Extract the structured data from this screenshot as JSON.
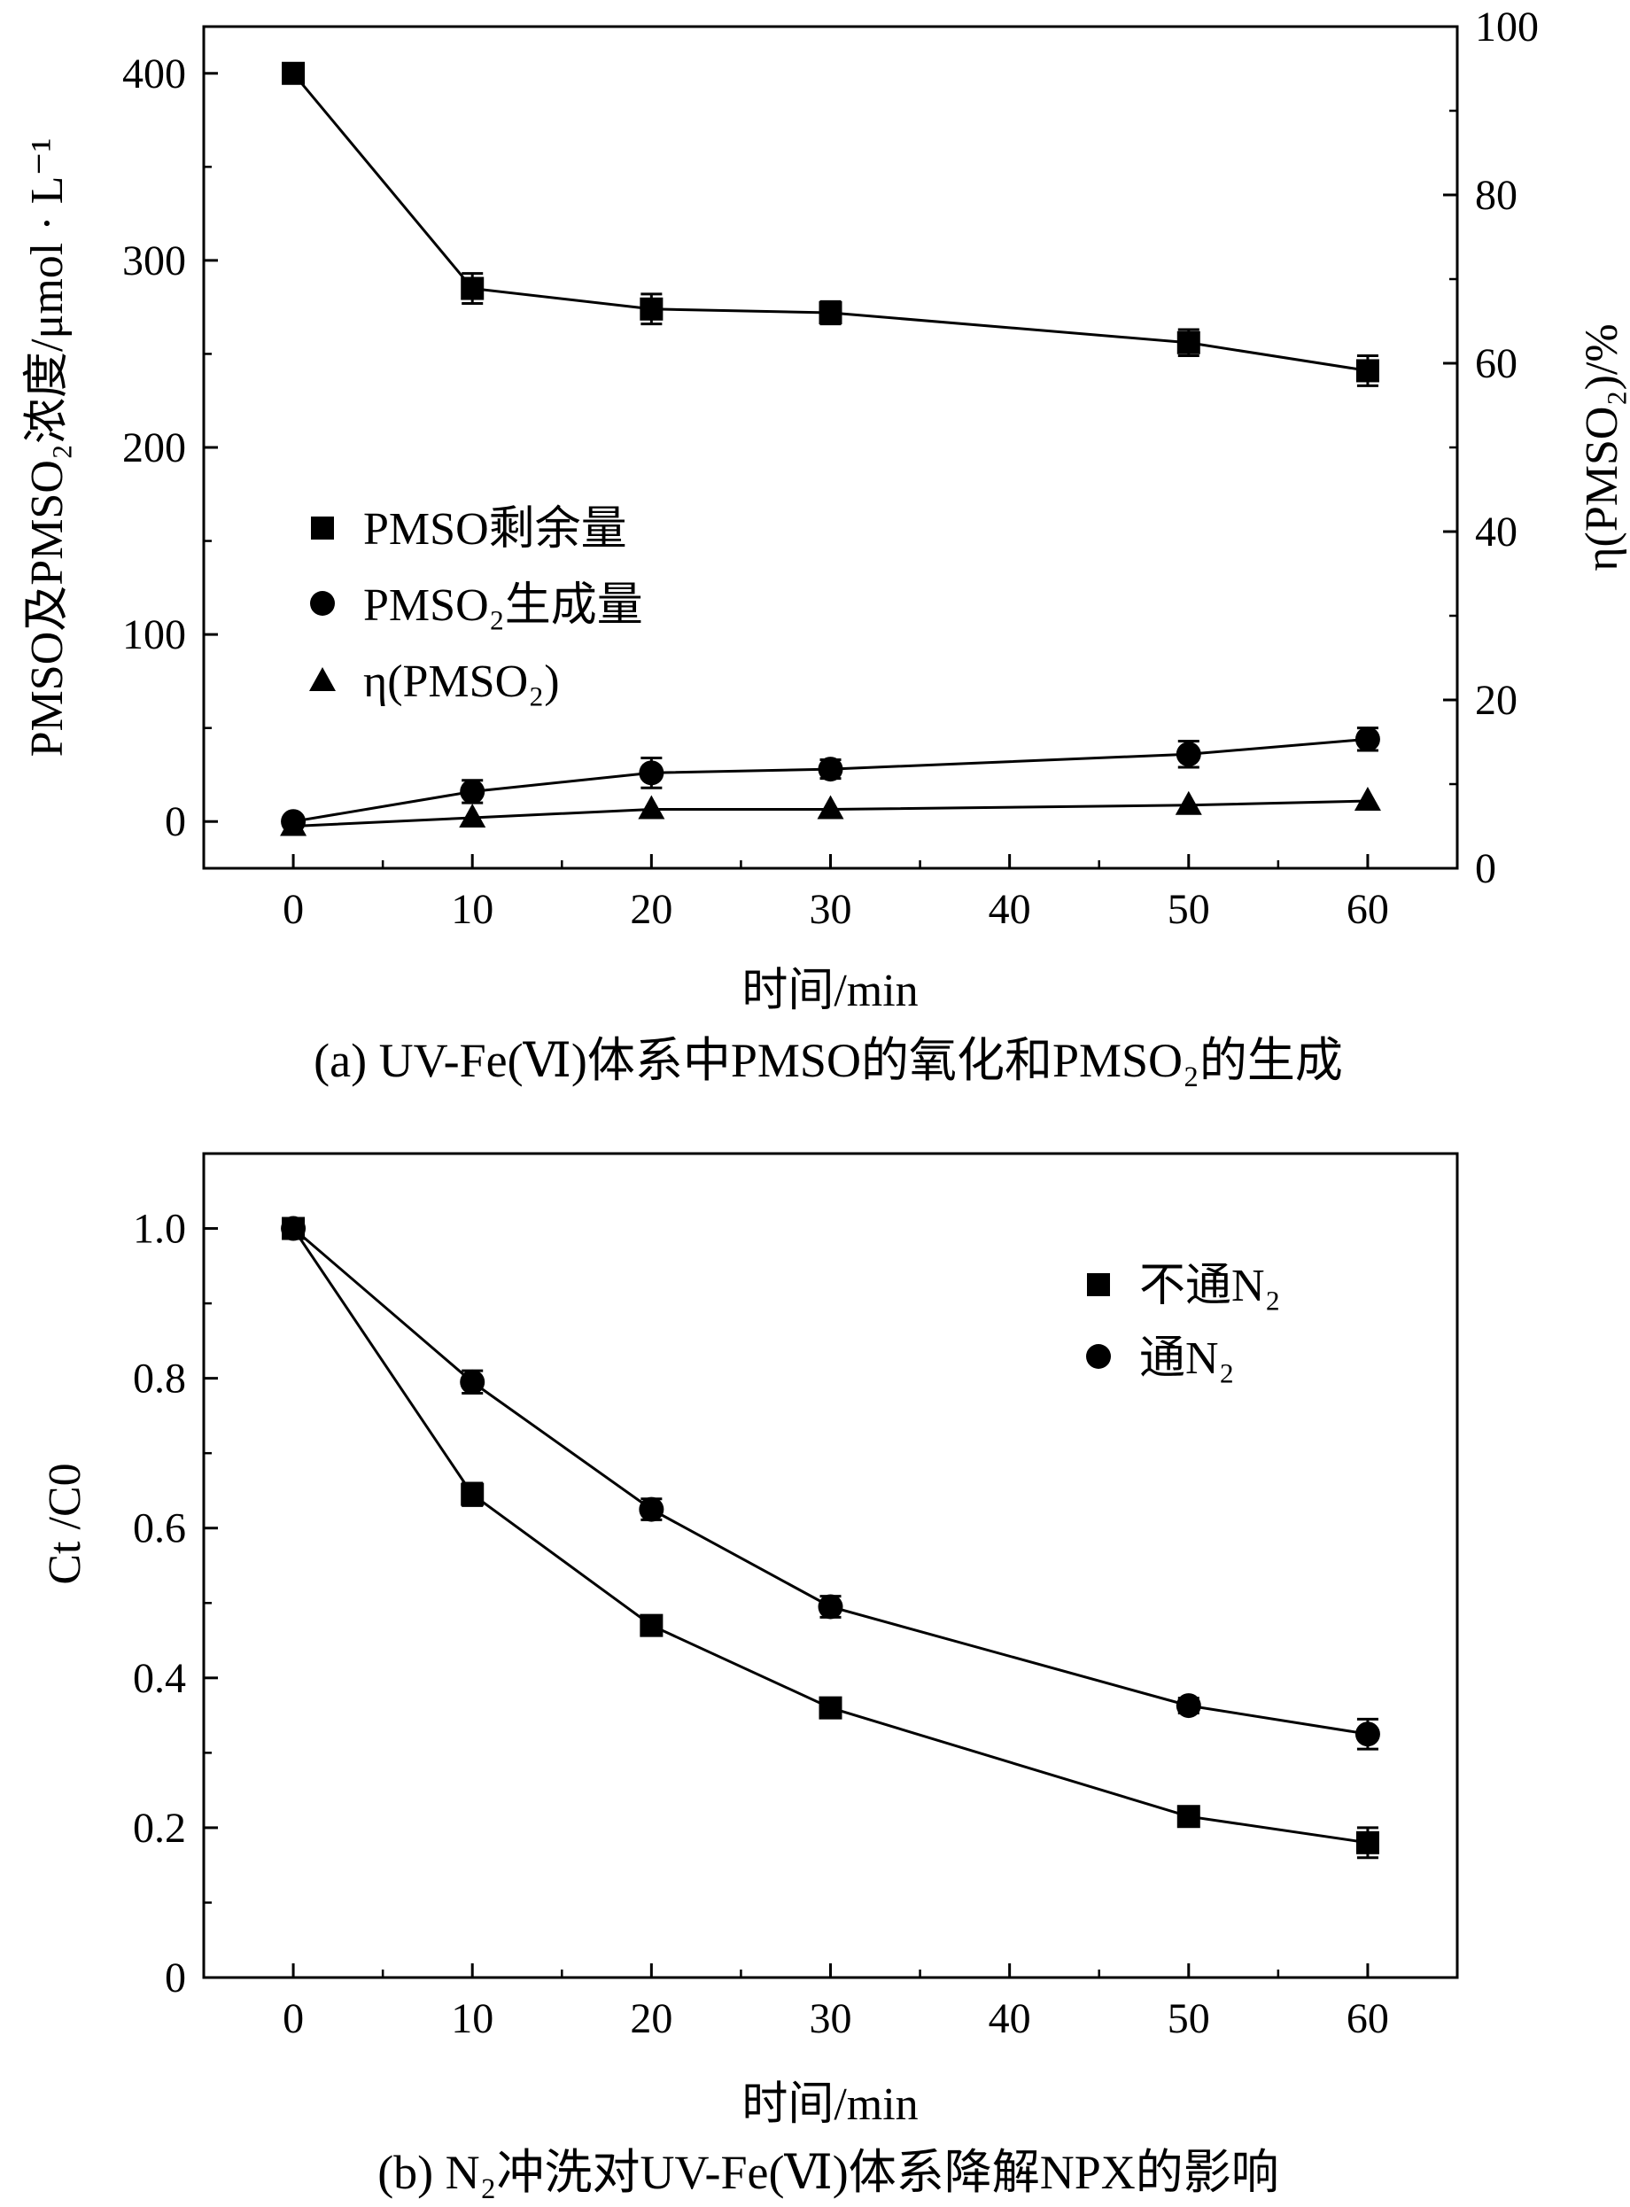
{
  "chart_data": [
    {
      "id": "a",
      "type": "line",
      "caption": "(a) UV-Fe(Ⅵ)体系中PMSO的氧化和PMSO₂的生成",
      "xlabel": "时间/min",
      "ylabel": "PMSO及PMSO₂浓度/μmol · L⁻¹",
      "y2label": "η(PMSO₂)/%",
      "xlim": [
        -5,
        65
      ],
      "ylim": [
        -25,
        425
      ],
      "y2lim": [
        0,
        100
      ],
      "x_ticks": [
        0,
        10,
        20,
        30,
        40,
        50,
        60
      ],
      "y_ticks": [
        0,
        100,
        200,
        300,
        400
      ],
      "y2_ticks": [
        0,
        20,
        40,
        60,
        80,
        100
      ],
      "legend_position": "center-left",
      "grid": false,
      "series": [
        {
          "name": "PMSO剩余量",
          "marker": "square",
          "axis": "left",
          "x": [
            0,
            10,
            20,
            30,
            50,
            60
          ],
          "y": [
            400,
            285,
            274,
            272,
            256,
            241
          ],
          "err": [
            0,
            8,
            8,
            6,
            7,
            8
          ]
        },
        {
          "name": "PMSO₂生成量",
          "marker": "circle",
          "axis": "left",
          "x": [
            0,
            10,
            20,
            30,
            50,
            60
          ],
          "y": [
            0,
            16,
            26,
            28,
            36,
            44
          ],
          "err": [
            0,
            6,
            8,
            5,
            7,
            6
          ]
        },
        {
          "name": "η(PMSO₂)",
          "marker": "triangle",
          "axis": "right",
          "x": [
            0,
            10,
            20,
            30,
            50,
            60
          ],
          "y": [
            5,
            6,
            7,
            7,
            7.5,
            8
          ],
          "err": [
            0,
            0,
            0,
            0,
            0,
            0
          ]
        }
      ]
    },
    {
      "id": "b",
      "type": "line",
      "caption": "(b) N₂冲洗对UV-Fe(Ⅵ)体系降解NPX的影响",
      "xlabel": "时间/min",
      "ylabel": "Ct /C0",
      "xlim": [
        -5,
        65
      ],
      "ylim": [
        0,
        1.1
      ],
      "x_ticks": [
        0,
        10,
        20,
        30,
        40,
        50,
        60
      ],
      "y_ticks": [
        0,
        0.2,
        0.4,
        0.6,
        0.8,
        1.0
      ],
      "y_tick_labels": [
        "0",
        "0.2",
        "0.4",
        "0.6",
        "0.8",
        "1.0"
      ],
      "legend_position": "top-right",
      "grid": false,
      "series": [
        {
          "name": "不通N₂",
          "marker": "square",
          "x": [
            0,
            10,
            20,
            30,
            50,
            60
          ],
          "y": [
            1.0,
            0.645,
            0.47,
            0.36,
            0.215,
            0.18
          ],
          "err": [
            0,
            0.015,
            0.012,
            0.012,
            0.008,
            0.02
          ]
        },
        {
          "name": "通N₂",
          "marker": "circle",
          "x": [
            0,
            10,
            20,
            30,
            50,
            60
          ],
          "y": [
            1.0,
            0.795,
            0.625,
            0.495,
            0.363,
            0.325
          ],
          "err": [
            0,
            0.015,
            0.014,
            0.014,
            0.01,
            0.02
          ]
        }
      ]
    }
  ]
}
